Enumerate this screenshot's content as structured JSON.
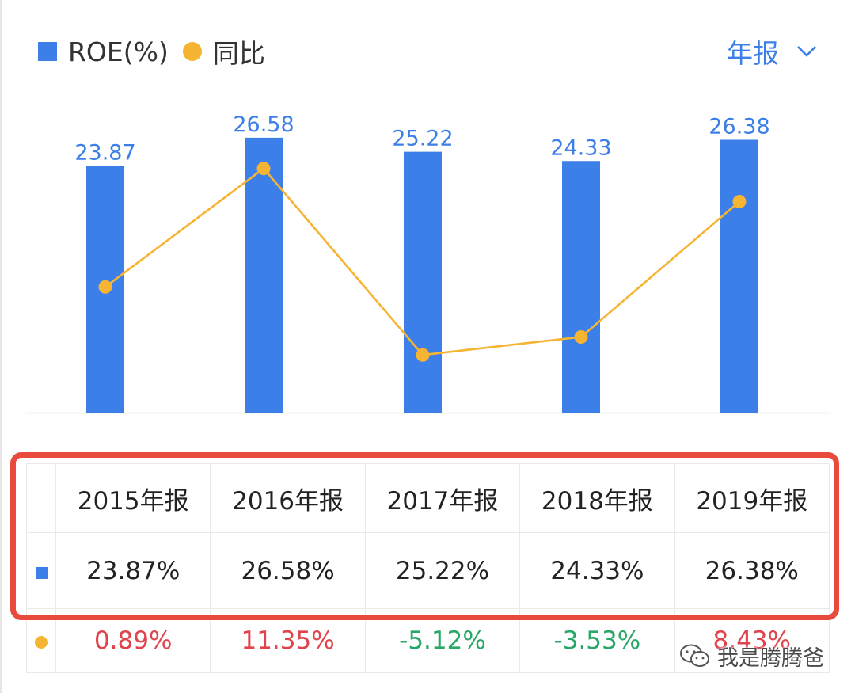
{
  "legend": {
    "roe_label": "ROE(%)",
    "yoy_label": "同比"
  },
  "period_selector": {
    "label": "年报"
  },
  "colors": {
    "bar": "#3d7fe8",
    "line": "#f5b431",
    "positive": "#e0434b",
    "negative": "#27a866",
    "highlight_frame": "#ea4a3c"
  },
  "chart_data": {
    "type": "bar",
    "categories": [
      "2015年报",
      "2016年报",
      "2017年报",
      "2018年报",
      "2019年报"
    ],
    "series": [
      {
        "type": "bar",
        "values": [
          23.87,
          26.58,
          25.22,
          24.33,
          26.38
        ]
      },
      {
        "type": "line",
        "values": [
          0.89,
          11.35,
          -5.12,
          -3.53,
          8.43
        ]
      }
    ],
    "grid": false
  },
  "table": {
    "headers": [
      "2015年报",
      "2016年报",
      "2017年报",
      "2018年报",
      "2019年报"
    ],
    "roe_row": [
      "23.87%",
      "26.58%",
      "25.22%",
      "24.33%",
      "26.38%"
    ],
    "yoy_row": [
      "0.89%",
      "11.35%",
      "-5.12%",
      "-3.53%",
      "8.43%"
    ]
  },
  "watermark": {
    "text": "我是腾腾爸"
  }
}
